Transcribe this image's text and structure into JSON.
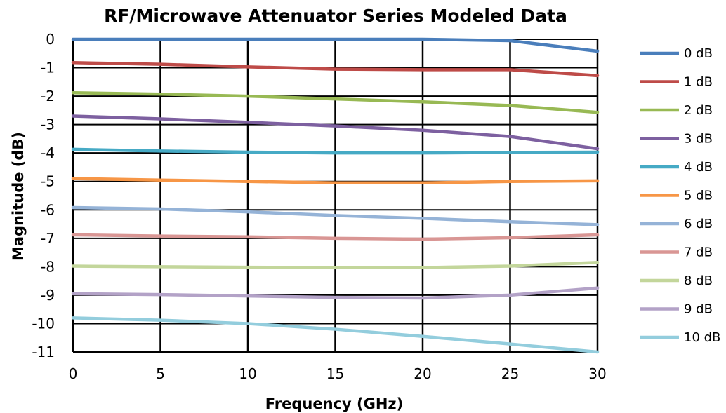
{
  "chart_data": {
    "type": "line",
    "title": "RF/Microwave Attenuator Series Modeled Data",
    "xlabel": "Frequency (GHz)",
    "ylabel": "Magnitude (dB)",
    "xlim": [
      0,
      30
    ],
    "ylim": [
      -11,
      0
    ],
    "xticks": [
      0,
      5,
      10,
      15,
      20,
      25,
      30
    ],
    "yticks": [
      0,
      -1,
      -2,
      -3,
      -4,
      -5,
      -6,
      -7,
      -8,
      -9,
      -10,
      -11
    ],
    "grid": true,
    "legend_position": "right",
    "x": [
      0,
      5,
      10,
      15,
      20,
      25,
      30
    ],
    "series": [
      {
        "name": "0 dB",
        "color": "#4a7ebb",
        "values": [
          0.0,
          0.0,
          0.0,
          0.0,
          0.0,
          -0.05,
          -0.42
        ]
      },
      {
        "name": "1 dB",
        "color": "#be4b48",
        "values": [
          -0.82,
          -0.88,
          -0.97,
          -1.05,
          -1.07,
          -1.07,
          -1.28
        ]
      },
      {
        "name": "2 dB",
        "color": "#98b954",
        "values": [
          -1.88,
          -1.93,
          -2.0,
          -2.1,
          -2.2,
          -2.33,
          -2.57
        ]
      },
      {
        "name": "3 dB",
        "color": "#7d60a0",
        "values": [
          -2.7,
          -2.8,
          -2.92,
          -3.05,
          -3.2,
          -3.42,
          -3.85
        ]
      },
      {
        "name": "4 dB",
        "color": "#46aac5",
        "values": [
          -3.87,
          -3.93,
          -3.97,
          -4.0,
          -4.0,
          -3.98,
          -3.97
        ]
      },
      {
        "name": "5 dB",
        "color": "#f79646",
        "values": [
          -4.9,
          -4.95,
          -5.0,
          -5.05,
          -5.05,
          -5.0,
          -4.98
        ]
      },
      {
        "name": "6 dB",
        "color": "#95b3d7",
        "values": [
          -5.92,
          -5.97,
          -6.07,
          -6.2,
          -6.3,
          -6.42,
          -6.52
        ]
      },
      {
        "name": "7 dB",
        "color": "#d99694",
        "values": [
          -6.88,
          -6.92,
          -6.95,
          -7.0,
          -7.03,
          -6.98,
          -6.88
        ]
      },
      {
        "name": "8 dB",
        "color": "#c3d69b",
        "values": [
          -7.98,
          -8.0,
          -8.02,
          -8.03,
          -8.03,
          -7.98,
          -7.85
        ]
      },
      {
        "name": "9 dB",
        "color": "#b3a2c7",
        "values": [
          -8.95,
          -8.98,
          -9.03,
          -9.08,
          -9.1,
          -9.0,
          -8.75
        ]
      },
      {
        "name": "10 dB",
        "color": "#93cddd",
        "values": [
          -9.8,
          -9.88,
          -10.0,
          -10.2,
          -10.45,
          -10.72,
          -11.0
        ]
      }
    ]
  }
}
